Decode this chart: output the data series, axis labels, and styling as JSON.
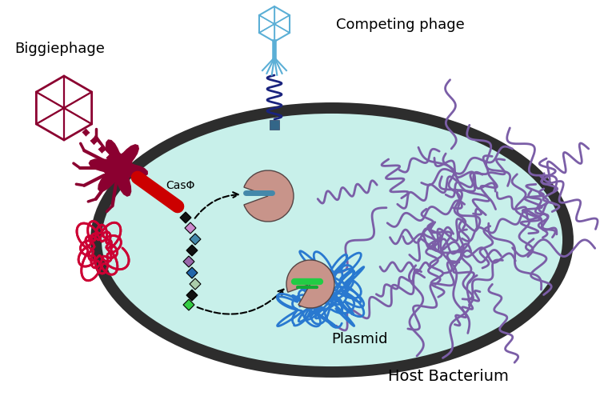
{
  "bg_color": "#ffffff",
  "bacterium_color": "#c8f0ea",
  "bacterium_outline": "#2d2d2d",
  "biggiephage_color": "#8b0030",
  "competing_phage_color": "#5bafd6",
  "competing_phage_dna_color": "#1a237e",
  "dna_red_color": "#cc0033",
  "cas_gene_color": "#cc0000",
  "chromosome_color": "#7b5ea7",
  "plasmid_color": "#2979d0",
  "cas_protein_color": "#c8948a",
  "label_biggiephage": "Biggiephage",
  "label_competing": "Competing phage",
  "label_plasmid": "Plasmid",
  "label_bacterium": "Host Bacterium",
  "label_cas": "CasΦ",
  "label_fontsize": 13
}
